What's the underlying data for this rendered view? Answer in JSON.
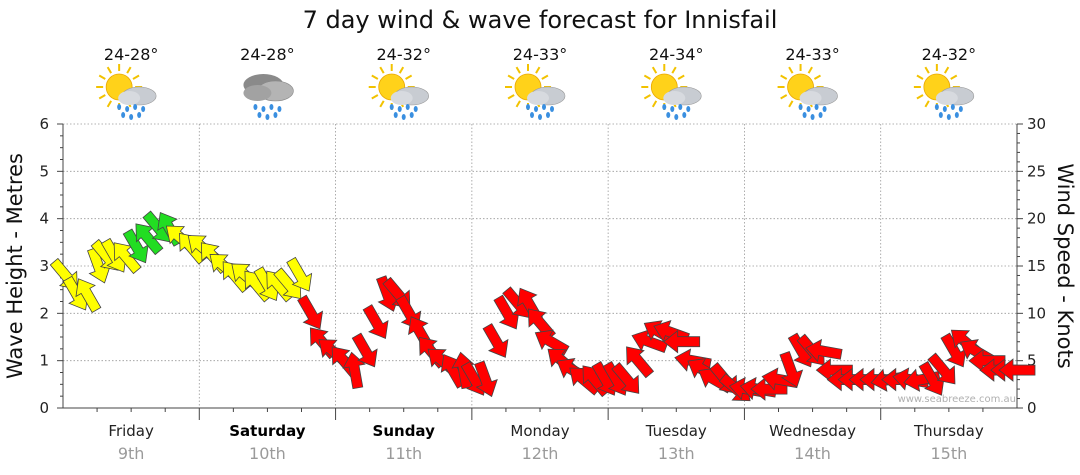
{
  "chart_data": {
    "type": "line",
    "title": "7 day wind & wave forecast for Innisfail",
    "ylabel": "Wave Height - Metres",
    "y2label": "Wind Speed - Knots",
    "ylim": [
      0,
      6
    ],
    "y2lim": [
      0,
      30
    ],
    "yticks": [
      "0",
      "1",
      "2",
      "3",
      "4",
      "5",
      "6"
    ],
    "y2ticks": [
      "0",
      "5",
      "10",
      "15",
      "20",
      "25",
      "30"
    ],
    "grid": true,
    "days": [
      {
        "name": "Friday",
        "date": "9th",
        "temp": "24-28°",
        "icon": "partly-cloudy-rain-icon",
        "bold": false
      },
      {
        "name": "Saturday",
        "date": "10th",
        "temp": "24-28°",
        "icon": "heavy-rain-icon",
        "bold": true
      },
      {
        "name": "Sunday",
        "date": "11th",
        "temp": "24-32°",
        "icon": "partly-cloudy-rain-icon",
        "bold": true
      },
      {
        "name": "Monday",
        "date": "12th",
        "temp": "24-33°",
        "icon": "partly-cloudy-rain-icon",
        "bold": false
      },
      {
        "name": "Tuesday",
        "date": "13th",
        "temp": "24-34°",
        "icon": "partly-cloudy-rain-icon",
        "bold": false
      },
      {
        "name": "Wednesday",
        "date": "14th",
        "temp": "24-33°",
        "icon": "partly-cloudy-rain-icon",
        "bold": false
      },
      {
        "name": "Thursday",
        "date": "15th",
        "temp": "24-32°",
        "icon": "partly-cloudy-rain-icon",
        "bold": false
      }
    ],
    "series": [
      {
        "name": "Wind Speed (knots)",
        "x_days": [
          0.02,
          0.1,
          0.18,
          0.26,
          0.32,
          0.38,
          0.46,
          0.54,
          0.62,
          0.7,
          0.78,
          0.86,
          0.94,
          1.02,
          1.1,
          1.18,
          1.26,
          1.34,
          1.42,
          1.5,
          1.58,
          1.66,
          1.74,
          1.82,
          1.9,
          1.98,
          2.06,
          2.14,
          2.22,
          2.3,
          2.38,
          2.46,
          2.54,
          2.62,
          2.7,
          2.78,
          2.86,
          2.94,
          3.02,
          3.1,
          3.18,
          3.26,
          3.34,
          3.42,
          3.5,
          3.58,
          3.66,
          3.74,
          3.82,
          3.9,
          3.98,
          4.06,
          4.14,
          4.22,
          4.3,
          4.38,
          4.46,
          4.54,
          4.62,
          4.7,
          4.78,
          4.86,
          4.94,
          5.02,
          5.1,
          5.18,
          5.26,
          5.34,
          5.42,
          5.5,
          5.58,
          5.66,
          5.74,
          5.82,
          5.9,
          5.98,
          6.06,
          6.14,
          6.22,
          6.3,
          6.38,
          6.46,
          6.54,
          6.62,
          6.7,
          6.78,
          6.86,
          6.94,
          7.0
        ],
        "values": [
          14,
          12,
          12,
          15,
          16,
          16,
          16,
          17,
          18,
          19,
          19,
          18,
          17,
          17,
          16,
          15,
          14,
          14,
          13,
          13,
          13,
          13,
          14,
          10,
          7,
          6,
          5,
          4,
          6,
          9,
          12,
          12,
          10,
          8,
          6,
          5,
          4,
          4,
          3,
          3,
          7,
          10,
          11,
          11,
          9,
          7,
          5,
          4,
          3,
          3,
          3,
          3,
          3,
          5,
          7,
          8,
          8,
          7,
          5,
          4,
          3,
          3,
          2,
          2,
          2,
          2,
          3,
          4,
          6,
          6,
          6,
          4,
          3,
          3,
          3,
          3,
          3,
          3,
          3,
          3,
          3,
          4,
          6,
          7,
          6,
          5,
          4,
          4,
          4
        ],
        "colors": [
          "yellow",
          "yellow",
          "yellow",
          "yellow",
          "yellow",
          "yellow",
          "yellow",
          "green",
          "green",
          "green",
          "green",
          "yellow",
          "yellow",
          "yellow",
          "yellow",
          "yellow",
          "yellow",
          "yellow",
          "yellow",
          "yellow",
          "yellow",
          "yellow",
          "yellow",
          "red",
          "red",
          "red",
          "red",
          "red",
          "red",
          "red",
          "red",
          "red",
          "red",
          "red",
          "red",
          "red",
          "red",
          "red",
          "red",
          "red",
          "red",
          "red",
          "red",
          "red",
          "red",
          "red",
          "red",
          "red",
          "red",
          "red",
          "red",
          "red",
          "red",
          "red",
          "red",
          "red",
          "red",
          "red",
          "red",
          "red",
          "red",
          "red",
          "red",
          "red",
          "red",
          "red",
          "red",
          "red",
          "red",
          "red",
          "red",
          "red",
          "red",
          "red",
          "red",
          "red",
          "red",
          "red",
          "red",
          "red",
          "red",
          "red",
          "red",
          "red",
          "red",
          "red",
          "red",
          "red",
          "red"
        ],
        "directions_deg": [
          320,
          330,
          150,
          340,
          320,
          330,
          140,
          330,
          140,
          320,
          150,
          130,
          140,
          130,
          140,
          130,
          140,
          130,
          140,
          330,
          140,
          320,
          330,
          330,
          140,
          130,
          140,
          170,
          330,
          330,
          340,
          320,
          330,
          150,
          140,
          130,
          150,
          170,
          330,
          340,
          330,
          330,
          320,
          150,
          140,
          120,
          130,
          120,
          130,
          140,
          330,
          330,
          320,
          140,
          110,
          120,
          110,
          90,
          100,
          120,
          120,
          320,
          310,
          100,
          100,
          90,
          100,
          340,
          330,
          320,
          100,
          90,
          90,
          90,
          90,
          90,
          80,
          90,
          100,
          80,
          330,
          320,
          330,
          130,
          120,
          90,
          90,
          90,
          90
        ]
      }
    ],
    "colors": {
      "red": "#ff0000",
      "yellow": "#ffff00",
      "green": "#22dd22",
      "grid": "#999999",
      "axis": "#444444"
    },
    "watermark": "www.seabreeze.com.au"
  }
}
